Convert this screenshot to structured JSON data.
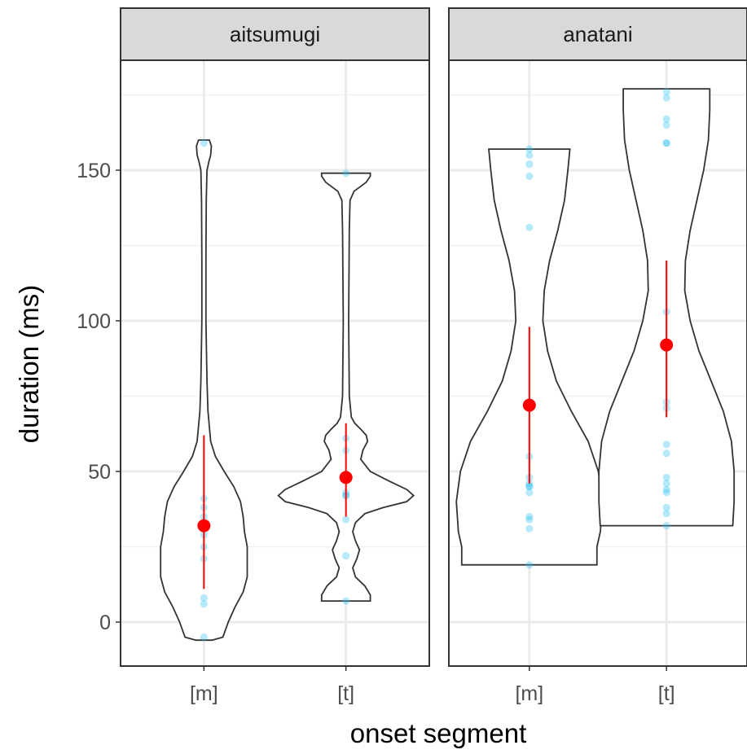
{
  "chart_data": {
    "type": "violin",
    "title": "",
    "xlabel": "onset segment",
    "ylabel": "duration (ms)",
    "ylim": [
      -14,
      187
    ],
    "yticks": [
      0,
      50,
      100,
      150
    ],
    "grid": true,
    "theme": "bw",
    "colors": {
      "points": "#2ec4f0",
      "summary": "#ff0000",
      "violin_stroke": "#333333",
      "strip_fill": "#d9d9d9"
    },
    "categories": [
      "[m]",
      "[t]"
    ],
    "facets": [
      {
        "name": "aitsumugi",
        "groups": [
          {
            "category": "[m]",
            "points": [
              159,
              41,
              38,
              35,
              31,
              29,
              25,
              21,
              8,
              6,
              -5
            ],
            "mean": 32,
            "ci_low": 11,
            "ci_high": 62,
            "violin_range": [
              -6,
              160
            ],
            "violin_profile": [
              [
                -6,
                0.12
              ],
              [
                -5,
                0.28
              ],
              [
                0,
                0.36
              ],
              [
                5,
                0.46
              ],
              [
                10,
                0.58
              ],
              [
                15,
                0.64
              ],
              [
                20,
                0.64
              ],
              [
                25,
                0.64
              ],
              [
                30,
                0.6
              ],
              [
                35,
                0.58
              ],
              [
                40,
                0.54
              ],
              [
                45,
                0.44
              ],
              [
                50,
                0.3
              ],
              [
                55,
                0.17
              ],
              [
                60,
                0.1
              ],
              [
                70,
                0.06
              ],
              [
                80,
                0.045
              ],
              [
                100,
                0.03
              ],
              [
                120,
                0.03
              ],
              [
                140,
                0.035
              ],
              [
                150,
                0.045
              ],
              [
                153,
                0.075
              ],
              [
                155,
                0.1
              ],
              [
                158,
                0.11
              ],
              [
                160,
                0.08
              ]
            ]
          },
          {
            "category": "[t]",
            "points": [
              149,
              61,
              57,
              43,
              42,
              42,
              34,
              22,
              7
            ],
            "mean": 48,
            "ci_low": 35,
            "ci_high": 66,
            "violin_range": [
              7,
              149
            ],
            "violin_profile": [
              [
                7,
                0.36
              ],
              [
                9,
                0.36
              ],
              [
                12,
                0.28
              ],
              [
                15,
                0.14
              ],
              [
                18,
                0.1
              ],
              [
                21,
                0.16
              ],
              [
                24,
                0.2
              ],
              [
                27,
                0.14
              ],
              [
                30,
                0.1
              ],
              [
                33,
                0.14
              ],
              [
                36,
                0.28
              ],
              [
                38,
                0.55
              ],
              [
                40,
                0.9
              ],
              [
                42,
                1.0
              ],
              [
                44,
                0.9
              ],
              [
                47,
                0.62
              ],
              [
                50,
                0.36
              ],
              [
                54,
                0.22
              ],
              [
                57,
                0.25
              ],
              [
                60,
                0.32
              ],
              [
                62,
                0.3
              ],
              [
                64,
                0.22
              ],
              [
                66,
                0.13
              ],
              [
                68,
                0.08
              ],
              [
                75,
                0.05
              ],
              [
                100,
                0.04
              ],
              [
                130,
                0.05
              ],
              [
                140,
                0.06
              ],
              [
                143,
                0.12
              ],
              [
                146,
                0.3
              ],
              [
                148,
                0.36
              ],
              [
                149,
                0.36
              ]
            ]
          }
        ]
      },
      {
        "name": "anatani",
        "groups": [
          {
            "category": "[m]",
            "points": [
              157,
              155,
              152,
              148,
              131,
              55,
              48,
              46,
              45,
              45,
              43,
              35,
              34,
              31,
              19
            ],
            "mean": 72,
            "ci_low": 46,
            "ci_high": 98,
            "violin_range": [
              19,
              157
            ],
            "violin_profile": [
              [
                19,
                1.0
              ],
              [
                25,
                1.0
              ],
              [
                30,
                1.05
              ],
              [
                40,
                1.08
              ],
              [
                50,
                1.02
              ],
              [
                60,
                0.87
              ],
              [
                70,
                0.62
              ],
              [
                80,
                0.4
              ],
              [
                90,
                0.27
              ],
              [
                100,
                0.2
              ],
              [
                110,
                0.22
              ],
              [
                120,
                0.3
              ],
              [
                130,
                0.42
              ],
              [
                140,
                0.52
              ],
              [
                150,
                0.57
              ],
              [
                157,
                0.6
              ]
            ]
          },
          {
            "category": "[t]",
            "points": [
              176,
              174,
              167,
              165,
              159,
              159,
              103,
              73,
              71,
              59,
              56,
              48,
              46,
              44,
              43,
              38,
              36,
              32
            ],
            "mean": 92,
            "ci_low": 68,
            "ci_high": 120,
            "violin_range": [
              32,
              177
            ],
            "violin_profile": [
              [
                32,
                0.98
              ],
              [
                40,
                1.0
              ],
              [
                50,
                1.0
              ],
              [
                60,
                0.96
              ],
              [
                70,
                0.84
              ],
              [
                80,
                0.66
              ],
              [
                90,
                0.48
              ],
              [
                100,
                0.35
              ],
              [
                110,
                0.27
              ],
              [
                120,
                0.28
              ],
              [
                130,
                0.35
              ],
              [
                140,
                0.45
              ],
              [
                150,
                0.55
              ],
              [
                160,
                0.62
              ],
              [
                170,
                0.64
              ],
              [
                177,
                0.64
              ]
            ]
          }
        ]
      }
    ]
  }
}
